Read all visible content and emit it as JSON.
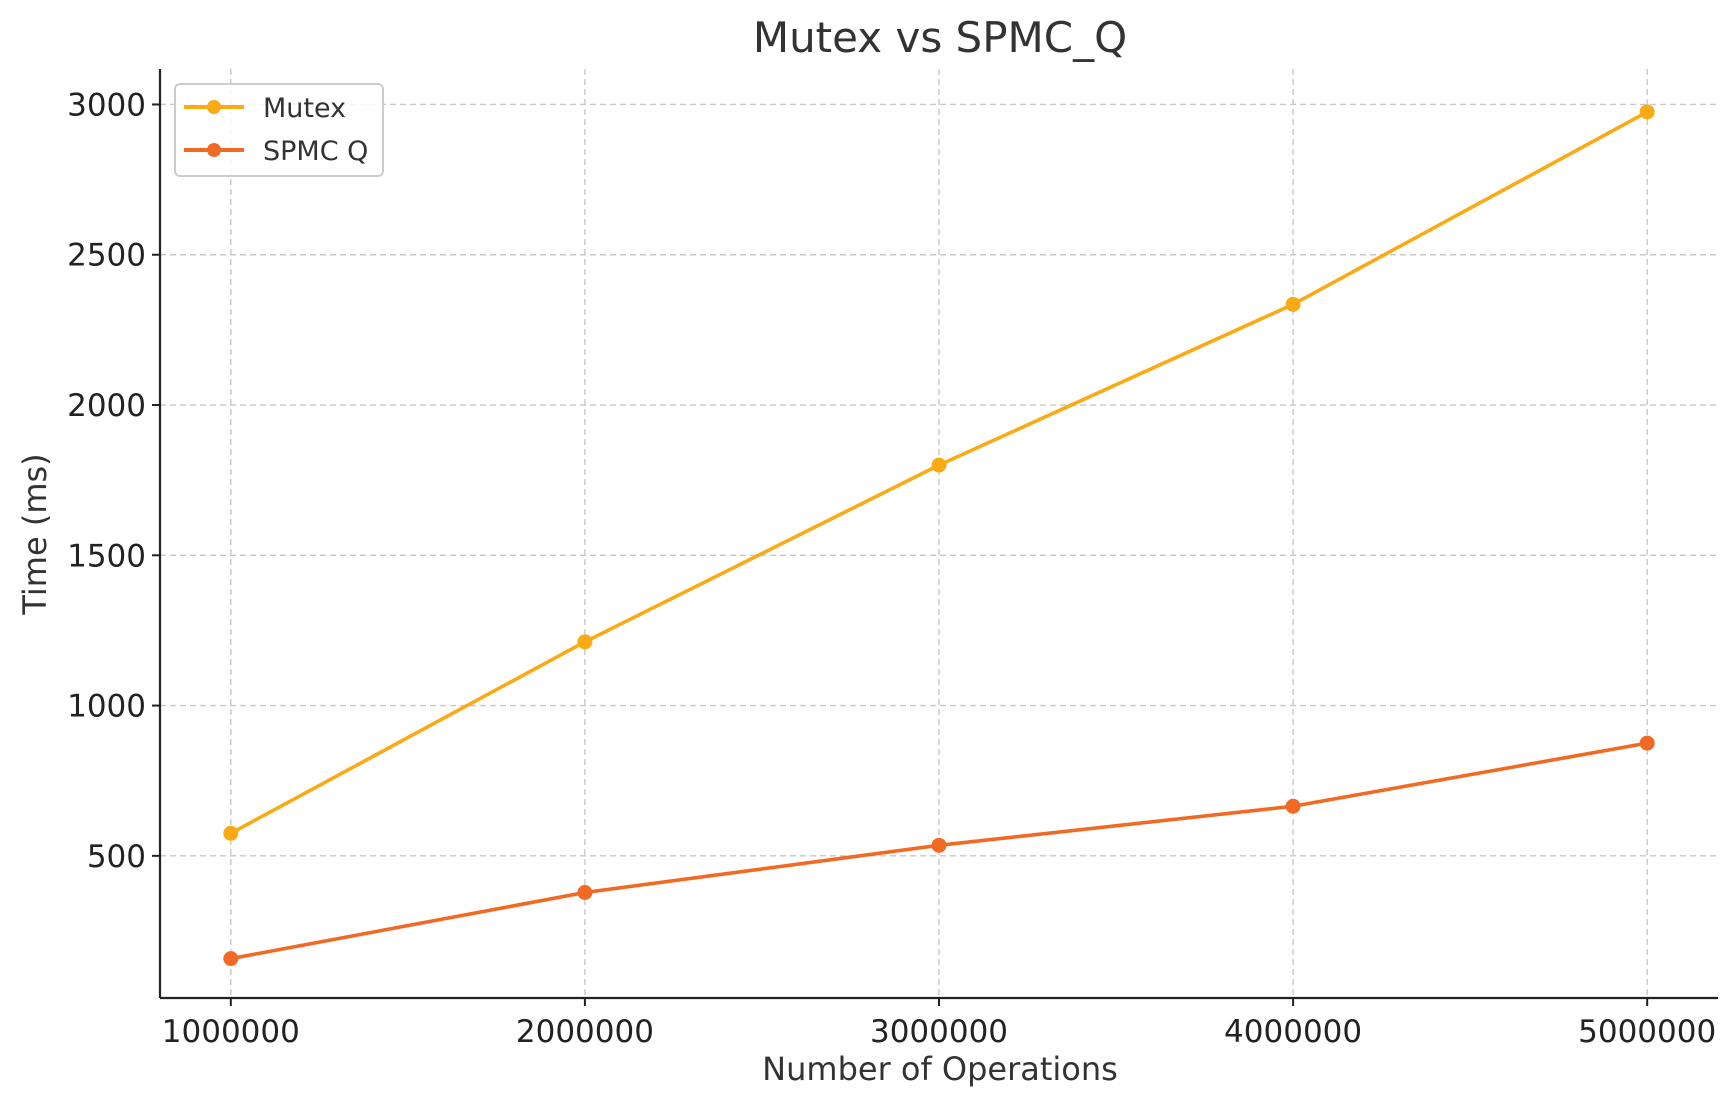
{
  "chart_data": {
    "type": "line",
    "title": "Mutex vs SPMC_Q",
    "xlabel": "Number of Operations",
    "ylabel": "Time (ms)",
    "x": [
      1000000,
      2000000,
      3000000,
      4000000,
      5000000
    ],
    "x_tick_labels": [
      "1000000",
      "2000000",
      "3000000",
      "4000000",
      "5000000"
    ],
    "y_ticks": [
      500,
      1000,
      1500,
      2000,
      2500,
      3000
    ],
    "y_tick_labels": [
      "500",
      "1000",
      "1500",
      "2000",
      "2500",
      "3000"
    ],
    "xlim": [
      800000,
      5200000
    ],
    "ylim": [
      27,
      3118
    ],
    "grid": true,
    "legend_position": "top-left",
    "series": [
      {
        "name": "Mutex",
        "color": "#FAAA14",
        "marker": "circle",
        "values": [
          575,
          1212,
          1800,
          2335,
          2975
        ]
      },
      {
        "name": "SPMC Q",
        "color": "#F06A23",
        "marker": "circle",
        "values": [
          158,
          378,
          535,
          665,
          875
        ]
      }
    ]
  }
}
